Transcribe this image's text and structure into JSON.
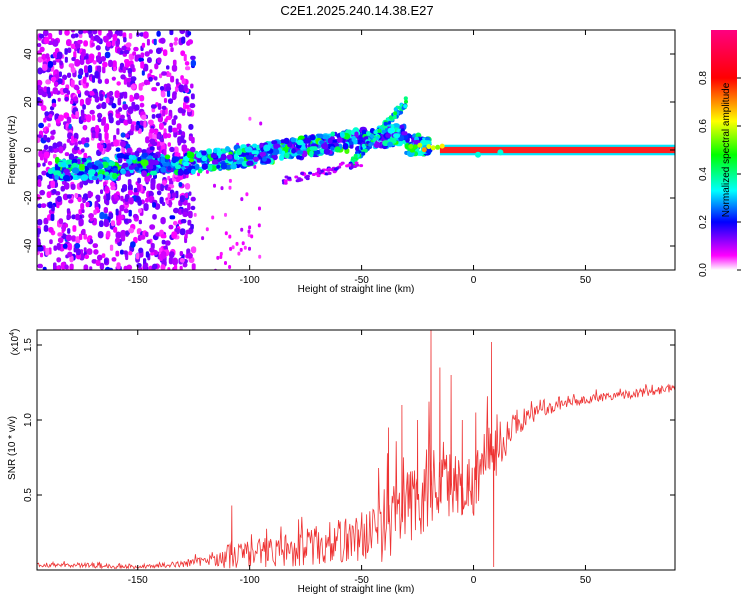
{
  "title": "C2E1.2025.240.14.38.E27",
  "chart_data": [
    {
      "type": "heatmap",
      "xlabel": "Height of straight line (km)",
      "ylabel": "Frequency (Hz)",
      "xlim": [
        -195,
        90
      ],
      "ylim": [
        -50,
        50
      ],
      "xticks": [
        -150,
        -100,
        -50,
        0,
        50
      ],
      "yticks": [
        -40,
        -20,
        0,
        20,
        40
      ],
      "colorbar": {
        "label": "Normalized spectral amplitude",
        "range": [
          0,
          1
        ],
        "ticks": [
          0.0,
          0.2,
          0.4,
          0.6,
          0.8
        ],
        "colors": [
          "#ffffff",
          "#ff00ff",
          "#0000ff",
          "#00ffff",
          "#00ff00",
          "#ffff00",
          "#ff0000",
          "#ff0080"
        ]
      }
    },
    {
      "type": "line",
      "xlabel": "Height of straight line (km)",
      "ylabel": "SNR (10 * v/v)",
      "y_scale_note": "(x10",
      "y_scale_exp": "4",
      "xlim": [
        -195,
        90
      ],
      "ylim": [
        0,
        1.6
      ],
      "xticks": [
        -150,
        -100,
        -50,
        0,
        50
      ],
      "yticks": [
        0.5,
        1.0,
        1.5
      ],
      "ytick_labels": [
        "0.5",
        "1.0",
        "1.5"
      ],
      "color": "#ee3333",
      "envelope": {
        "x": [
          -195,
          -170,
          -150,
          -130,
          -115,
          -108,
          -100,
          -80,
          -60,
          -45,
          -38,
          -32,
          -25,
          -20,
          -15,
          -10,
          -5,
          0,
          5,
          9,
          15,
          22,
          30,
          45,
          60,
          75,
          90
        ],
        "base": [
          0.03,
          0.03,
          0.02,
          0.04,
          0.07,
          0.1,
          0.11,
          0.14,
          0.19,
          0.25,
          0.32,
          0.38,
          0.47,
          0.55,
          0.62,
          0.58,
          0.55,
          0.57,
          0.72,
          0.78,
          0.9,
          1.0,
          1.06,
          1.12,
          1.16,
          1.18,
          1.22
        ],
        "amp": [
          0.01,
          0.02,
          0.01,
          0.02,
          0.04,
          0.1,
          0.09,
          0.12,
          0.15,
          0.18,
          0.28,
          0.25,
          0.3,
          0.3,
          0.28,
          0.25,
          0.2,
          0.22,
          0.22,
          0.2,
          0.12,
          0.07,
          0.04,
          0.03,
          0.03,
          0.03,
          0.03
        ]
      },
      "spikes": [
        {
          "x": -108,
          "y": 0.43
        },
        {
          "x": -38,
          "y": 0.95
        },
        {
          "x": -32,
          "y": 1.1
        },
        {
          "x": -25,
          "y": 1.0
        },
        {
          "x": -19,
          "y": 1.6
        },
        {
          "x": -15,
          "y": 1.35
        },
        {
          "x": -10,
          "y": 1.3
        },
        {
          "x": -5,
          "y": 1.0
        },
        {
          "x": 1,
          "y": 1.05
        },
        {
          "x": 8,
          "y": 1.52
        },
        {
          "x": 9,
          "y": 0.02
        }
      ]
    }
  ]
}
